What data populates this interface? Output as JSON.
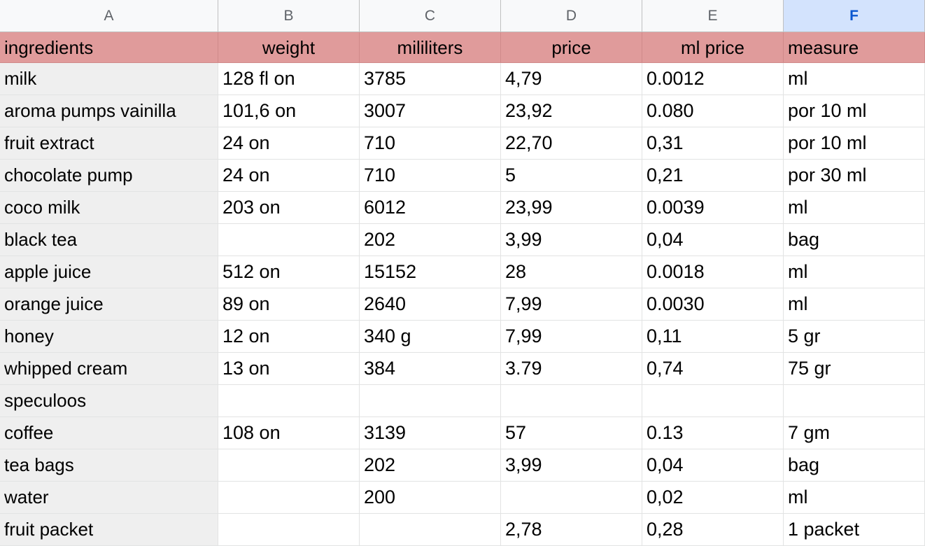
{
  "column_headers": [
    "A",
    "B",
    "C",
    "D",
    "E",
    "F"
  ],
  "selected_column": "F",
  "header_row": [
    "ingredients",
    "weight",
    "mililiters",
    "price",
    "ml price",
    "measure"
  ],
  "rows": [
    [
      "milk",
      "128 fl on",
      "3785",
      "4,79",
      "0.0012",
      "ml"
    ],
    [
      "aroma pumps vainilla",
      "101,6 on",
      "3007",
      "23,92",
      "0.080",
      "por 10 ml"
    ],
    [
      "fruit extract",
      "24 on",
      "710",
      "22,70",
      "0,31",
      "por 10 ml"
    ],
    [
      "chocolate pump",
      "24 on",
      "710",
      "5",
      "0,21",
      "por 30 ml"
    ],
    [
      "coco milk",
      "203 on",
      "6012",
      "23,99",
      "0.0039",
      "ml"
    ],
    [
      "black tea",
      "",
      "202",
      "3,99",
      "0,04",
      "bag"
    ],
    [
      "apple juice",
      "512 on",
      "15152",
      "28",
      "0.0018",
      "ml"
    ],
    [
      "orange juice",
      "89 on",
      "2640",
      "7,99",
      "0.0030",
      "ml"
    ],
    [
      "honey",
      "12 on",
      "340 g",
      "7,99",
      "0,11",
      "5 gr"
    ],
    [
      "whipped cream",
      "13 on",
      "384",
      "3.79",
      "0,74",
      "75 gr"
    ],
    [
      "speculoos",
      "",
      "",
      "",
      "",
      ""
    ],
    [
      "coffee",
      "108 on",
      "3139",
      "57",
      "0.13",
      "7 gm"
    ],
    [
      "tea bags",
      "",
      "202",
      "3,99",
      "0,04",
      "bag"
    ],
    [
      "water",
      "",
      "200",
      "",
      "0,02",
      "ml"
    ],
    [
      "fruit packet",
      "",
      "",
      "2,78",
      "0,28",
      "1 packet"
    ]
  ],
  "colors": {
    "header_row_fill": "#e09b9b",
    "first_column_fill": "#efefef",
    "selected_column_header": "#d3e3fd"
  }
}
